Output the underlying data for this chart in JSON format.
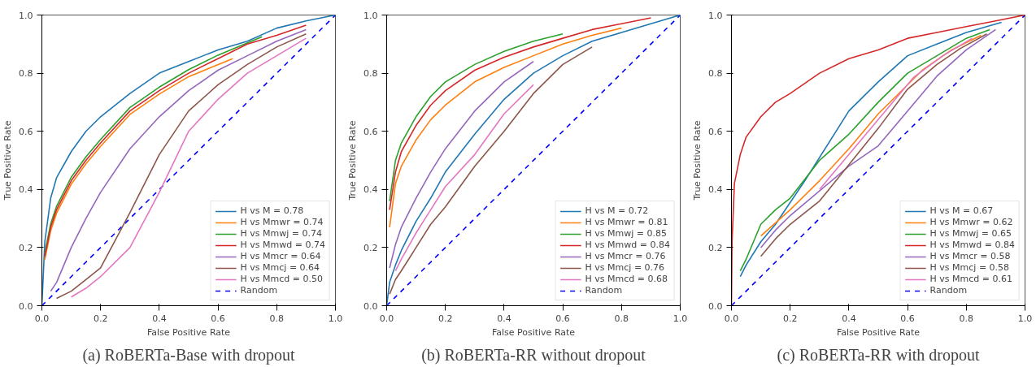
{
  "chart_data": [
    {
      "type": "line",
      "title": "(a) RoBERTa-Base with dropout",
      "xlabel": "False Positive Rate",
      "ylabel": "True Positive Rate",
      "xlim": [
        0,
        1
      ],
      "ylim": [
        0,
        1
      ],
      "xticks": [
        {
          "value": 0,
          "label": "0.0"
        },
        {
          "value": 0.2,
          "label": "0.2"
        },
        {
          "value": 0.4,
          "label": "0.4"
        },
        {
          "value": 0.6,
          "label": "0.6"
        },
        {
          "value": 0.8,
          "label": "0.8"
        },
        {
          "value": 1,
          "label": "1.0"
        }
      ],
      "yticks": [
        {
          "value": 0,
          "label": "0.0"
        },
        {
          "value": 0.2,
          "label": "0.2"
        },
        {
          "value": 0.4,
          "label": "0.4"
        },
        {
          "value": 0.6,
          "label": "0.6"
        },
        {
          "value": 0.8,
          "label": "0.8"
        },
        {
          "value": 1,
          "label": "1.0"
        }
      ],
      "grid": false,
      "legend": "bottom right",
      "series": [
        {
          "name": "H vs M = 0.78",
          "color": "#1f77b4",
          "x": [
            0,
            0.01,
            0.03,
            0.05,
            0.1,
            0.15,
            0.2,
            0.3,
            0.4,
            0.5,
            0.6,
            0.7,
            0.8,
            0.9,
            1
          ],
          "values": [
            0,
            0.22,
            0.37,
            0.44,
            0.53,
            0.6,
            0.65,
            0.73,
            0.8,
            0.84,
            0.88,
            0.91,
            0.955,
            0.98,
            1
          ]
        },
        {
          "name": "H vs Mmwr = 0.74",
          "color": "#ff7f0e",
          "x": [
            0.01,
            0.03,
            0.05,
            0.1,
            0.15,
            0.2,
            0.3,
            0.4,
            0.5,
            0.65
          ],
          "values": [
            0.158,
            0.258,
            0.318,
            0.418,
            0.488,
            0.548,
            0.658,
            0.728,
            0.788,
            0.85
          ]
        },
        {
          "name": "H vs Mmwj = 0.74",
          "color": "#2ca02c",
          "x": [
            0.01,
            0.03,
            0.05,
            0.1,
            0.15,
            0.2,
            0.3,
            0.4,
            0.5,
            0.6,
            0.75
          ],
          "values": [
            0.182,
            0.282,
            0.342,
            0.442,
            0.512,
            0.572,
            0.682,
            0.752,
            0.812,
            0.862,
            0.925
          ]
        },
        {
          "name": "H vs Mmwd = 0.74",
          "color": "#d62728",
          "x": [
            0.01,
            0.03,
            0.05,
            0.1,
            0.15,
            0.2,
            0.3,
            0.4,
            0.5,
            0.6,
            0.7,
            0.8,
            0.9
          ],
          "values": [
            0.17,
            0.27,
            0.33,
            0.43,
            0.5,
            0.56,
            0.67,
            0.74,
            0.8,
            0.85,
            0.9,
            0.93,
            0.965
          ]
        },
        {
          "name": "H vs Mmcr = 0.64",
          "color": "#9467bd",
          "x": [
            0.03,
            0.05,
            0.1,
            0.15,
            0.2,
            0.3,
            0.4,
            0.5,
            0.6,
            0.7,
            0.8,
            0.9
          ],
          "values": [
            0.05,
            0.08,
            0.2,
            0.3,
            0.39,
            0.54,
            0.65,
            0.74,
            0.81,
            0.86,
            0.91,
            0.95
          ]
        },
        {
          "name": "H vs Mmcj = 0.64",
          "color": "#8c564b",
          "x": [
            0.05,
            0.1,
            0.15,
            0.2,
            0.3,
            0.4,
            0.5,
            0.6,
            0.7,
            0.8,
            0.9
          ],
          "values": [
            0.025,
            0.05,
            0.09,
            0.13,
            0.32,
            0.52,
            0.67,
            0.76,
            0.83,
            0.89,
            0.935
          ]
        },
        {
          "name": "H vs Mmcd = 0.50",
          "color": "#e377c2",
          "x": [
            0.1,
            0.15,
            0.2,
            0.3,
            0.4,
            0.5,
            0.6,
            0.7,
            0.8,
            0.9
          ],
          "values": [
            0.03,
            0.06,
            0.1,
            0.2,
            0.39,
            0.6,
            0.71,
            0.8,
            0.86,
            0.92
          ]
        },
        {
          "name": "Random",
          "color": "#0000ff",
          "line_style": "dashed",
          "x": [
            0,
            1
          ],
          "values": [
            0,
            1
          ]
        }
      ]
    },
    {
      "type": "line",
      "title": "(b) RoBERTa-RR without dropout",
      "xlabel": "False Positive Rate",
      "ylabel": "True Positive Rate",
      "xlim": [
        0,
        1
      ],
      "ylim": [
        0,
        1
      ],
      "xticks": [
        {
          "value": 0,
          "label": "0.0"
        },
        {
          "value": 0.2,
          "label": "0.2"
        },
        {
          "value": 0.4,
          "label": "0.4"
        },
        {
          "value": 0.6,
          "label": "0.6"
        },
        {
          "value": 0.8,
          "label": "0.8"
        },
        {
          "value": 1,
          "label": "1.0"
        }
      ],
      "yticks": [
        {
          "value": 0,
          "label": "0.0"
        },
        {
          "value": 0.2,
          "label": "0.2"
        },
        {
          "value": 0.4,
          "label": "0.4"
        },
        {
          "value": 0.6,
          "label": "0.6"
        },
        {
          "value": 0.8,
          "label": "0.8"
        },
        {
          "value": 1,
          "label": "1.0"
        }
      ],
      "grid": false,
      "legend": "bottom right",
      "series": [
        {
          "name": "H vs M = 0.72",
          "color": "#1f77b4",
          "x": [
            0,
            0.01,
            0.03,
            0.05,
            0.1,
            0.15,
            0.2,
            0.3,
            0.4,
            0.5,
            0.6,
            0.7,
            0.8,
            0.9,
            1
          ],
          "values": [
            0,
            0.08,
            0.14,
            0.19,
            0.29,
            0.37,
            0.46,
            0.59,
            0.71,
            0.8,
            0.86,
            0.91,
            0.94,
            0.97,
            1
          ]
        },
        {
          "name": "H vs Mmwr = 0.81",
          "color": "#ff7f0e",
          "x": [
            0.01,
            0.03,
            0.05,
            0.1,
            0.15,
            0.2,
            0.3,
            0.4,
            0.5,
            0.6,
            0.7,
            0.8
          ],
          "values": [
            0.27,
            0.42,
            0.48,
            0.57,
            0.64,
            0.69,
            0.77,
            0.82,
            0.86,
            0.9,
            0.93,
            0.955
          ]
        },
        {
          "name": "H vs Mmwj = 0.85",
          "color": "#2ca02c",
          "x": [
            0.01,
            0.03,
            0.05,
            0.1,
            0.15,
            0.2,
            0.3,
            0.4,
            0.5,
            0.6
          ],
          "values": [
            0.36,
            0.5,
            0.56,
            0.65,
            0.72,
            0.77,
            0.83,
            0.875,
            0.91,
            0.935
          ]
        },
        {
          "name": "H vs Mmwd = 0.84",
          "color": "#d62728",
          "x": [
            0.01,
            0.03,
            0.05,
            0.1,
            0.15,
            0.2,
            0.3,
            0.4,
            0.5,
            0.6,
            0.7,
            0.8,
            0.9
          ],
          "values": [
            0.33,
            0.46,
            0.53,
            0.62,
            0.69,
            0.74,
            0.81,
            0.855,
            0.89,
            0.92,
            0.95,
            0.97,
            0.99
          ]
        },
        {
          "name": "H vs Mmcr = 0.76",
          "color": "#9467bd",
          "x": [
            0.01,
            0.03,
            0.05,
            0.1,
            0.15,
            0.2,
            0.3,
            0.4,
            0.5
          ],
          "values": [
            0.13,
            0.21,
            0.27,
            0.37,
            0.46,
            0.54,
            0.67,
            0.77,
            0.84
          ]
        },
        {
          "name": "H vs Mmcj = 0.76",
          "color": "#8c564b",
          "x": [
            0.01,
            0.03,
            0.05,
            0.1,
            0.15,
            0.2,
            0.3,
            0.4,
            0.5,
            0.6,
            0.7
          ],
          "values": [
            0.04,
            0.09,
            0.12,
            0.2,
            0.28,
            0.34,
            0.48,
            0.6,
            0.73,
            0.83,
            0.89
          ]
        },
        {
          "name": "H vs Mmcd = 0.68",
          "color": "#e377c2",
          "x": [
            0.03,
            0.05,
            0.1,
            0.15,
            0.2,
            0.3,
            0.4,
            0.5
          ],
          "values": [
            0.12,
            0.16,
            0.25,
            0.33,
            0.41,
            0.52,
            0.66,
            0.76
          ]
        },
        {
          "name": "Random",
          "color": "#0000ff",
          "line_style": "dashed",
          "x": [
            0,
            1
          ],
          "values": [
            0,
            1
          ]
        }
      ]
    },
    {
      "type": "line",
      "title": "(c) RoBERTa-RR with dropout",
      "xlabel": "False Positive Rate",
      "ylabel": "True Positive Rate",
      "xlim": [
        0,
        1
      ],
      "ylim": [
        0,
        1
      ],
      "xticks": [
        {
          "value": 0,
          "label": "0.0"
        },
        {
          "value": 0.2,
          "label": "0.2"
        },
        {
          "value": 0.4,
          "label": "0.4"
        },
        {
          "value": 0.6,
          "label": "0.6"
        },
        {
          "value": 0.8,
          "label": "0.8"
        },
        {
          "value": 1,
          "label": "1.0"
        }
      ],
      "yticks": [
        {
          "value": 0,
          "label": "0.0"
        },
        {
          "value": 0.2,
          "label": "0.2"
        },
        {
          "value": 0.4,
          "label": "0.4"
        },
        {
          "value": 0.6,
          "label": "0.6"
        },
        {
          "value": 0.8,
          "label": "0.8"
        },
        {
          "value": 1,
          "label": "1.0"
        }
      ],
      "grid": false,
      "legend": "bottom right",
      "series": [
        {
          "name": "H vs M = 0.67",
          "color": "#1f77b4",
          "x": [
            0.03,
            0.05,
            0.1,
            0.15,
            0.25,
            0.4,
            0.5,
            0.6,
            0.7,
            0.8,
            0.92
          ],
          "values": [
            0.1,
            0.14,
            0.22,
            0.28,
            0.43,
            0.67,
            0.77,
            0.86,
            0.9,
            0.94,
            0.975
          ]
        },
        {
          "name": "H vs Mmwr = 0.62",
          "color": "#ff7f0e",
          "x": [
            0.1,
            0.2,
            0.3,
            0.4,
            0.5,
            0.65,
            0.75,
            0.85
          ],
          "values": [
            0.24,
            0.33,
            0.43,
            0.54,
            0.66,
            0.81,
            0.88,
            0.93
          ]
        },
        {
          "name": "H vs Mmwj = 0.65",
          "color": "#2ca02c",
          "x": [
            0.03,
            0.05,
            0.1,
            0.15,
            0.2,
            0.3,
            0.4,
            0.5,
            0.6,
            0.7,
            0.8,
            0.88
          ],
          "values": [
            0.12,
            0.16,
            0.28,
            0.33,
            0.37,
            0.5,
            0.59,
            0.7,
            0.8,
            0.86,
            0.92,
            0.95
          ]
        },
        {
          "name": "H vs Mmwd = 0.84",
          "color": "#d62728",
          "x": [
            0,
            0.002,
            0.01,
            0.03,
            0.05,
            0.1,
            0.15,
            0.2,
            0.3,
            0.4,
            0.5,
            0.6,
            0.7,
            0.8,
            0.9,
            1
          ],
          "values": [
            0,
            0.22,
            0.42,
            0.52,
            0.58,
            0.65,
            0.7,
            0.73,
            0.8,
            0.85,
            0.88,
            0.92,
            0.94,
            0.96,
            0.98,
            1
          ]
        },
        {
          "name": "H vs Mmcr = 0.58",
          "color": "#9467bd",
          "x": [
            0.1,
            0.15,
            0.2,
            0.4,
            0.5,
            0.6,
            0.7,
            0.8,
            0.9
          ],
          "values": [
            0.2,
            0.26,
            0.31,
            0.48,
            0.55,
            0.67,
            0.79,
            0.88,
            0.95
          ]
        },
        {
          "name": "H vs Mmcj = 0.58",
          "color": "#8c564b",
          "x": [
            0.1,
            0.15,
            0.2,
            0.3,
            0.5,
            0.6,
            0.7,
            0.78,
            0.87
          ],
          "values": [
            0.17,
            0.23,
            0.28,
            0.36,
            0.61,
            0.745,
            0.83,
            0.885,
            0.935
          ]
        },
        {
          "name": "H vs Mmcd = 0.61",
          "color": "#e377c2",
          "x": [
            0.3,
            0.4,
            0.62,
            0.72,
            0.82
          ],
          "values": [
            0.4,
            0.52,
            0.785,
            0.86,
            0.92
          ]
        },
        {
          "name": "Random",
          "color": "#0000ff",
          "line_style": "dashed",
          "x": [
            0,
            1
          ],
          "values": [
            0,
            1
          ]
        }
      ]
    }
  ]
}
